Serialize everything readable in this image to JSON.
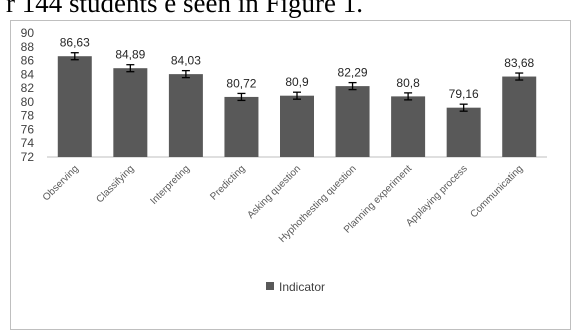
{
  "caption_fragment": "r 144 students e seen in Figure 1.",
  "chart_data": {
    "type": "bar",
    "categories": [
      "Observing",
      "Classifying",
      "Interpreting",
      "Predicting",
      "Asking question",
      "Hyphothesting question",
      "Planning experiment",
      "Applaying process",
      "Communicating"
    ],
    "series": [
      {
        "name": "Indicator",
        "values": [
          86.63,
          84.89,
          84.03,
          80.72,
          80.9,
          82.29,
          80.8,
          79.16,
          83.68
        ]
      }
    ],
    "data_labels": [
      "86,63",
      "84,89",
      "84,03",
      "80,72",
      "80,9",
      "82,29",
      "80,8",
      "79,16",
      "83,68"
    ],
    "error_bars": true,
    "ylim": [
      72,
      90
    ],
    "yticks": [
      72,
      74,
      76,
      78,
      80,
      82,
      84,
      86,
      88,
      90
    ],
    "legend_position": "bottom",
    "bar_color": "#595959",
    "grid": false
  }
}
